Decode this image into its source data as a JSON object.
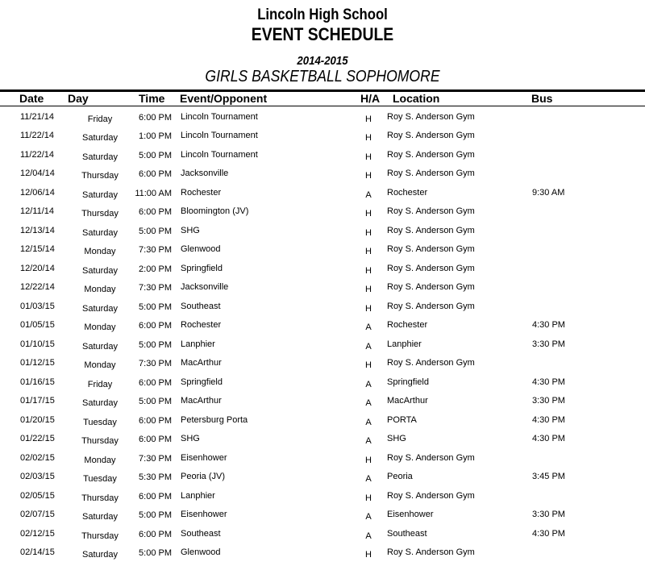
{
  "header": {
    "school": "Lincoln High School",
    "title": "EVENT SCHEDULE",
    "season": "2014-2015",
    "team": "GIRLS BASKETBALL SOPHOMORE"
  },
  "columns": {
    "date": "Date",
    "day": "Day",
    "time": "Time",
    "event": "Event/Opponent",
    "ha": "H/A",
    "location": "Location",
    "bus": "Bus"
  },
  "rows": [
    {
      "date": "11/21/14",
      "day": "Friday",
      "time": "6:00 PM",
      "event": "Lincoln Tournament",
      "ha": "H",
      "location": "Roy S. Anderson Gym",
      "bus": ""
    },
    {
      "date": "11/22/14",
      "day": "Saturday",
      "time": "1:00 PM",
      "event": "Lincoln Tournament",
      "ha": "H",
      "location": "Roy S. Anderson Gym",
      "bus": ""
    },
    {
      "date": "11/22/14",
      "day": "Saturday",
      "time": "5:00 PM",
      "event": "Lincoln Tournament",
      "ha": "H",
      "location": "Roy S. Anderson Gym",
      "bus": ""
    },
    {
      "date": "12/04/14",
      "day": "Thursday",
      "time": "6:00 PM",
      "event": "Jacksonville",
      "ha": "H",
      "location": "Roy S. Anderson Gym",
      "bus": ""
    },
    {
      "date": "12/06/14",
      "day": "Saturday",
      "time": "11:00 AM",
      "event": "Rochester",
      "ha": "A",
      "location": "Rochester",
      "bus": "9:30 AM"
    },
    {
      "date": "12/11/14",
      "day": "Thursday",
      "time": "6:00 PM",
      "event": "Bloomington (JV)",
      "ha": "H",
      "location": "Roy S. Anderson Gym",
      "bus": ""
    },
    {
      "date": "12/13/14",
      "day": "Saturday",
      "time": "5:00 PM",
      "event": "SHG",
      "ha": "H",
      "location": "Roy S. Anderson Gym",
      "bus": ""
    },
    {
      "date": "12/15/14",
      "day": "Monday",
      "time": "7:30 PM",
      "event": "Glenwood",
      "ha": "H",
      "location": "Roy S. Anderson Gym",
      "bus": ""
    },
    {
      "date": "12/20/14",
      "day": "Saturday",
      "time": "2:00 PM",
      "event": "Springfield",
      "ha": "H",
      "location": "Roy S. Anderson Gym",
      "bus": ""
    },
    {
      "date": "12/22/14",
      "day": "Monday",
      "time": "7:30 PM",
      "event": "Jacksonville",
      "ha": "H",
      "location": "Roy S. Anderson Gym",
      "bus": ""
    },
    {
      "date": "01/03/15",
      "day": "Saturday",
      "time": "5:00 PM",
      "event": "Southeast",
      "ha": "H",
      "location": "Roy S. Anderson Gym",
      "bus": ""
    },
    {
      "date": "01/05/15",
      "day": "Monday",
      "time": "6:00 PM",
      "event": "Rochester",
      "ha": "A",
      "location": "Rochester",
      "bus": "4:30 PM"
    },
    {
      "date": "01/10/15",
      "day": "Saturday",
      "time": "5:00 PM",
      "event": "Lanphier",
      "ha": "A",
      "location": "Lanphier",
      "bus": "3:30 PM"
    },
    {
      "date": "01/12/15",
      "day": "Monday",
      "time": "7:30 PM",
      "event": "MacArthur",
      "ha": "H",
      "location": "Roy S. Anderson Gym",
      "bus": ""
    },
    {
      "date": "01/16/15",
      "day": "Friday",
      "time": "6:00 PM",
      "event": "Springfield",
      "ha": "A",
      "location": "Springfield",
      "bus": "4:30 PM"
    },
    {
      "date": "01/17/15",
      "day": "Saturday",
      "time": "5:00 PM",
      "event": "MacArthur",
      "ha": "A",
      "location": "MacArthur",
      "bus": "3:30 PM"
    },
    {
      "date": "01/20/15",
      "day": "Tuesday",
      "time": "6:00 PM",
      "event": "Petersburg Porta",
      "ha": "A",
      "location": "PORTA",
      "bus": "4:30 PM"
    },
    {
      "date": "01/22/15",
      "day": "Thursday",
      "time": "6:00 PM",
      "event": "SHG",
      "ha": "A",
      "location": "SHG",
      "bus": "4:30 PM"
    },
    {
      "date": "02/02/15",
      "day": "Monday",
      "time": "7:30 PM",
      "event": "Eisenhower",
      "ha": "H",
      "location": "Roy S. Anderson Gym",
      "bus": ""
    },
    {
      "date": "02/03/15",
      "day": "Tuesday",
      "time": "5:30 PM",
      "event": "Peoria (JV)",
      "ha": "A",
      "location": "Peoria",
      "bus": "3:45 PM"
    },
    {
      "date": "02/05/15",
      "day": "Thursday",
      "time": "6:00 PM",
      "event": "Lanphier",
      "ha": "H",
      "location": "Roy S. Anderson Gym",
      "bus": ""
    },
    {
      "date": "02/07/15",
      "day": "Saturday",
      "time": "5:00 PM",
      "event": "Eisenhower",
      "ha": "A",
      "location": "Eisenhower",
      "bus": "3:30 PM"
    },
    {
      "date": "02/12/15",
      "day": "Thursday",
      "time": "6:00 PM",
      "event": "Southeast",
      "ha": "A",
      "location": "Southeast",
      "bus": "4:30 PM"
    },
    {
      "date": "02/14/15",
      "day": "Saturday",
      "time": "5:00 PM",
      "event": "Glenwood",
      "ha": "H",
      "location": "Roy S. Anderson Gym",
      "bus": ""
    }
  ]
}
